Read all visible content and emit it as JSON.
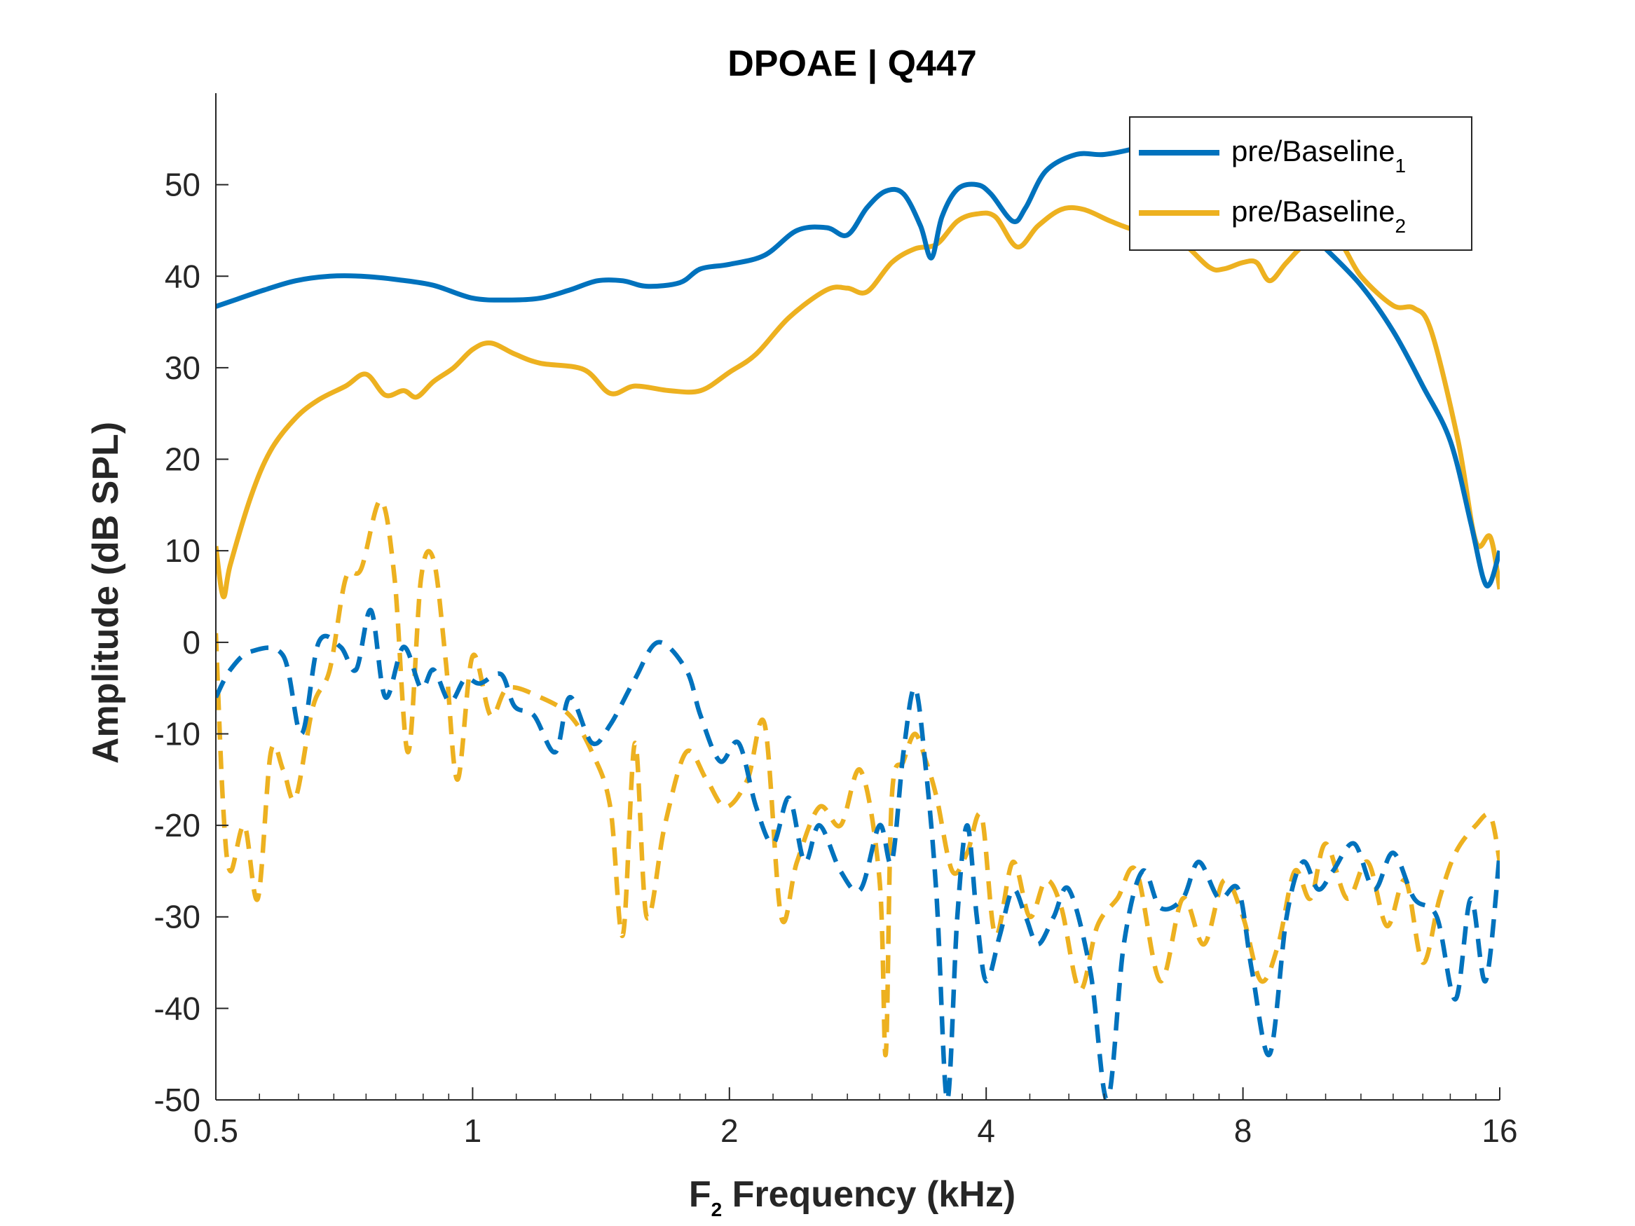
{
  "chart_data": {
    "type": "line",
    "title": "DPOAE | Q447",
    "xlabel": "F",
    "xlabel_sub": "2",
    "xlabel_rest": " Frequency (kHz)",
    "ylabel": "Amplitude (dB SPL)",
    "x_scale": "log2",
    "xlim": [
      0.5,
      16
    ],
    "ylim": [
      -50,
      60
    ],
    "x_ticks": [
      0.5,
      1,
      2,
      4,
      8,
      16
    ],
    "x_tick_labels": [
      "0.5",
      "1",
      "2",
      "4",
      "8",
      "16"
    ],
    "y_ticks": [
      -50,
      -40,
      -30,
      -20,
      -10,
      0,
      10,
      20,
      30,
      40,
      50
    ],
    "y_tick_labels": [
      "-50",
      "-40",
      "-30",
      "-20",
      "-10",
      "0",
      "10",
      "20",
      "30",
      "40",
      "50"
    ],
    "grid": false,
    "legend_placement": "top-right",
    "series": [
      {
        "name": "pre/Baseline",
        "name_sub": "1",
        "color": "#0072BD",
        "style": "solid",
        "points": [
          [
            0.5,
            36.7
          ],
          [
            0.53,
            37.5
          ],
          [
            0.57,
            38.5
          ],
          [
            0.62,
            39.5
          ],
          [
            0.68,
            40.0
          ],
          [
            0.74,
            40.0
          ],
          [
            0.82,
            39.6
          ],
          [
            0.9,
            39.0
          ],
          [
            1.0,
            37.6
          ],
          [
            1.1,
            37.4
          ],
          [
            1.2,
            37.6
          ],
          [
            1.3,
            38.5
          ],
          [
            1.4,
            39.5
          ],
          [
            1.5,
            39.5
          ],
          [
            1.6,
            38.9
          ],
          [
            1.75,
            39.3
          ],
          [
            1.85,
            40.8
          ],
          [
            2.0,
            41.3
          ],
          [
            2.2,
            42.3
          ],
          [
            2.4,
            45.0
          ],
          [
            2.6,
            45.3
          ],
          [
            2.75,
            44.5
          ],
          [
            2.9,
            47.5
          ],
          [
            3.05,
            49.3
          ],
          [
            3.2,
            49.0
          ],
          [
            3.35,
            45.5
          ],
          [
            3.45,
            42.0
          ],
          [
            3.55,
            46.5
          ],
          [
            3.7,
            49.5
          ],
          [
            3.9,
            50.0
          ],
          [
            4.05,
            49.0
          ],
          [
            4.3,
            46.0
          ],
          [
            4.45,
            47.5
          ],
          [
            4.7,
            51.5
          ],
          [
            5.1,
            53.3
          ],
          [
            5.5,
            53.3
          ],
          [
            6.0,
            54.0
          ],
          [
            6.5,
            55.0
          ]
        ]
      },
      {
        "name": "pre/Baseline",
        "name_sub": "2",
        "color": "#EDB120",
        "style": "solid",
        "points": [
          [
            0.5,
            10.5
          ],
          [
            0.51,
            5.0
          ],
          [
            0.52,
            8.5
          ],
          [
            0.55,
            16.0
          ],
          [
            0.58,
            21.0
          ],
          [
            0.62,
            24.5
          ],
          [
            0.66,
            26.5
          ],
          [
            0.71,
            28.0
          ],
          [
            0.75,
            29.3
          ],
          [
            0.79,
            27.0
          ],
          [
            0.83,
            27.5
          ],
          [
            0.86,
            26.8
          ],
          [
            0.9,
            28.5
          ],
          [
            0.95,
            30.0
          ],
          [
            1.0,
            32.0
          ],
          [
            1.05,
            32.7
          ],
          [
            1.12,
            31.5
          ],
          [
            1.2,
            30.5
          ],
          [
            1.35,
            29.8
          ],
          [
            1.45,
            27.2
          ],
          [
            1.55,
            28.0
          ],
          [
            1.7,
            27.5
          ],
          [
            1.85,
            27.5
          ],
          [
            2.0,
            29.5
          ],
          [
            2.15,
            31.5
          ],
          [
            2.35,
            35.5
          ],
          [
            2.6,
            38.5
          ],
          [
            2.75,
            38.7
          ],
          [
            2.9,
            38.3
          ],
          [
            3.1,
            41.5
          ],
          [
            3.3,
            43.0
          ],
          [
            3.5,
            43.5
          ],
          [
            3.7,
            46.0
          ],
          [
            3.9,
            46.8
          ],
          [
            4.1,
            46.5
          ],
          [
            4.35,
            43.2
          ],
          [
            4.6,
            45.5
          ],
          [
            4.9,
            47.3
          ],
          [
            5.2,
            47.3
          ],
          [
            5.6,
            46.0
          ],
          [
            6.0,
            45.0
          ],
          [
            6.7,
            44.0
          ],
          [
            7.3,
            41.0
          ],
          [
            7.6,
            40.8
          ],
          [
            8.0,
            41.5
          ],
          [
            8.3,
            41.5
          ],
          [
            8.6,
            39.5
          ],
          [
            9.0,
            41.5
          ],
          [
            9.5,
            43.5
          ],
          [
            10.3,
            44.0
          ],
          [
            11.0,
            40.0
          ],
          [
            12.0,
            36.8
          ],
          [
            12.7,
            36.5
          ],
          [
            13.3,
            34.0
          ],
          [
            14.3,
            22.0
          ],
          [
            15.0,
            11.0
          ],
          [
            15.6,
            11.5
          ],
          [
            16.0,
            5.8
          ]
        ]
      },
      {
        "name": "",
        "color": "#0072BD",
        "style": "solid",
        "points": [
          [
            10.0,
            43.0
          ],
          [
            11.0,
            39.0
          ],
          [
            12.0,
            34.0
          ],
          [
            13.0,
            28.0
          ],
          [
            14.0,
            22.0
          ],
          [
            14.8,
            13.0
          ],
          [
            15.3,
            7.0
          ],
          [
            15.6,
            6.5
          ],
          [
            16.0,
            10.0
          ]
        ]
      },
      {
        "name": "",
        "color": "#0072BD",
        "style": "dashed",
        "points": [
          [
            0.5,
            -6.0
          ],
          [
            0.52,
            -3.0
          ],
          [
            0.55,
            -1.0
          ],
          [
            0.6,
            -1.5
          ],
          [
            0.63,
            -10.0
          ],
          [
            0.66,
            0.0
          ],
          [
            0.7,
            -0.5
          ],
          [
            0.73,
            -3.0
          ],
          [
            0.76,
            3.5
          ],
          [
            0.79,
            -6.0
          ],
          [
            0.83,
            -0.5
          ],
          [
            0.87,
            -5.0
          ],
          [
            0.9,
            -3.0
          ],
          [
            0.94,
            -6.5
          ],
          [
            0.98,
            -4.0
          ],
          [
            1.02,
            -4.5
          ],
          [
            1.08,
            -3.5
          ],
          [
            1.12,
            -7.0
          ],
          [
            1.18,
            -8.0
          ],
          [
            1.25,
            -12.0
          ],
          [
            1.3,
            -6.0
          ],
          [
            1.38,
            -11.0
          ],
          [
            1.45,
            -9.0
          ],
          [
            1.55,
            -4.0
          ],
          [
            1.65,
            0.0
          ],
          [
            1.78,
            -3.0
          ],
          [
            1.85,
            -8.0
          ],
          [
            1.95,
            -13.0
          ],
          [
            2.05,
            -11.0
          ],
          [
            2.15,
            -18.0
          ],
          [
            2.25,
            -22.0
          ],
          [
            2.35,
            -17.0
          ],
          [
            2.45,
            -24.0
          ],
          [
            2.55,
            -20.0
          ],
          [
            2.7,
            -25.0
          ],
          [
            2.85,
            -27.0
          ],
          [
            3.0,
            -20.0
          ],
          [
            3.1,
            -24.0
          ],
          [
            3.2,
            -12.0
          ],
          [
            3.3,
            -5.0
          ],
          [
            3.4,
            -14.0
          ],
          [
            3.5,
            -28.0
          ],
          [
            3.6,
            -50.0
          ],
          [
            3.7,
            -30.0
          ],
          [
            3.8,
            -20.0
          ],
          [
            3.9,
            -30.0
          ],
          [
            4.0,
            -37.0
          ],
          [
            4.15,
            -32.0
          ],
          [
            4.3,
            -27.0
          ],
          [
            4.45,
            -30.0
          ],
          [
            4.6,
            -33.0
          ],
          [
            4.8,
            -30.0
          ],
          [
            5.0,
            -27.0
          ],
          [
            5.3,
            -36.0
          ],
          [
            5.55,
            -50.0
          ],
          [
            5.8,
            -33.0
          ],
          [
            6.1,
            -25.0
          ],
          [
            6.4,
            -29.0
          ],
          [
            6.8,
            -28.0
          ],
          [
            7.1,
            -24.0
          ],
          [
            7.5,
            -28.0
          ],
          [
            7.9,
            -27.0
          ],
          [
            8.2,
            -36.0
          ],
          [
            8.6,
            -45.0
          ],
          [
            9.0,
            -30.0
          ],
          [
            9.4,
            -24.0
          ],
          [
            9.8,
            -27.0
          ],
          [
            10.2,
            -25.0
          ],
          [
            10.8,
            -22.0
          ],
          [
            11.4,
            -27.0
          ],
          [
            12.0,
            -23.0
          ],
          [
            12.7,
            -28.0
          ],
          [
            13.5,
            -30.0
          ],
          [
            14.2,
            -39.0
          ],
          [
            14.8,
            -28.0
          ],
          [
            15.4,
            -37.0
          ],
          [
            16.0,
            -23.0
          ]
        ]
      },
      {
        "name": "",
        "color": "#EDB120",
        "style": "dashed",
        "points": [
          [
            0.5,
            1.0
          ],
          [
            0.51,
            -18.0
          ],
          [
            0.52,
            -25.0
          ],
          [
            0.54,
            -20.0
          ],
          [
            0.56,
            -28.0
          ],
          [
            0.58,
            -12.0
          ],
          [
            0.6,
            -14.0
          ],
          [
            0.62,
            -17.0
          ],
          [
            0.65,
            -7.0
          ],
          [
            0.68,
            -3.0
          ],
          [
            0.71,
            7.0
          ],
          [
            0.74,
            8.0
          ],
          [
            0.78,
            15.5
          ],
          [
            0.81,
            7.0
          ],
          [
            0.84,
            -12.0
          ],
          [
            0.87,
            7.0
          ],
          [
            0.9,
            9.0
          ],
          [
            0.93,
            -2.0
          ],
          [
            0.96,
            -15.0
          ],
          [
            1.0,
            -1.5
          ],
          [
            1.05,
            -8.0
          ],
          [
            1.1,
            -5.0
          ],
          [
            1.2,
            -6.0
          ],
          [
            1.3,
            -8.0
          ],
          [
            1.38,
            -12.0
          ],
          [
            1.45,
            -18.0
          ],
          [
            1.5,
            -32.0
          ],
          [
            1.55,
            -11.0
          ],
          [
            1.6,
            -30.0
          ],
          [
            1.68,
            -20.0
          ],
          [
            1.78,
            -12.0
          ],
          [
            1.88,
            -15.0
          ],
          [
            1.98,
            -18.0
          ],
          [
            2.1,
            -15.0
          ],
          [
            2.2,
            -9.0
          ],
          [
            2.3,
            -30.0
          ],
          [
            2.4,
            -24.0
          ],
          [
            2.55,
            -18.0
          ],
          [
            2.7,
            -20.0
          ],
          [
            2.85,
            -14.0
          ],
          [
            3.0,
            -26.0
          ],
          [
            3.05,
            -45.0
          ],
          [
            3.1,
            -17.0
          ],
          [
            3.2,
            -13.0
          ],
          [
            3.3,
            -10.0
          ],
          [
            3.4,
            -13.0
          ],
          [
            3.5,
            -17.0
          ],
          [
            3.65,
            -25.0
          ],
          [
            3.8,
            -23.0
          ],
          [
            3.95,
            -19.0
          ],
          [
            4.1,
            -32.0
          ],
          [
            4.3,
            -24.0
          ],
          [
            4.5,
            -30.0
          ],
          [
            4.7,
            -26.0
          ],
          [
            4.9,
            -29.0
          ],
          [
            5.15,
            -38.0
          ],
          [
            5.4,
            -31.0
          ],
          [
            5.7,
            -28.0
          ],
          [
            6.0,
            -25.0
          ],
          [
            6.4,
            -37.0
          ],
          [
            6.8,
            -28.0
          ],
          [
            7.2,
            -33.0
          ],
          [
            7.6,
            -26.0
          ],
          [
            8.0,
            -30.0
          ],
          [
            8.4,
            -37.0
          ],
          [
            8.8,
            -33.0
          ],
          [
            9.2,
            -25.0
          ],
          [
            9.6,
            -28.0
          ],
          [
            10.0,
            -22.0
          ],
          [
            10.6,
            -28.0
          ],
          [
            11.2,
            -24.0
          ],
          [
            11.8,
            -31.0
          ],
          [
            12.4,
            -26.0
          ],
          [
            13.0,
            -35.0
          ],
          [
            13.6,
            -28.0
          ],
          [
            14.2,
            -23.0
          ],
          [
            15.0,
            -20.0
          ],
          [
            15.6,
            -19.0
          ],
          [
            16.0,
            -24.0
          ]
        ]
      }
    ]
  }
}
